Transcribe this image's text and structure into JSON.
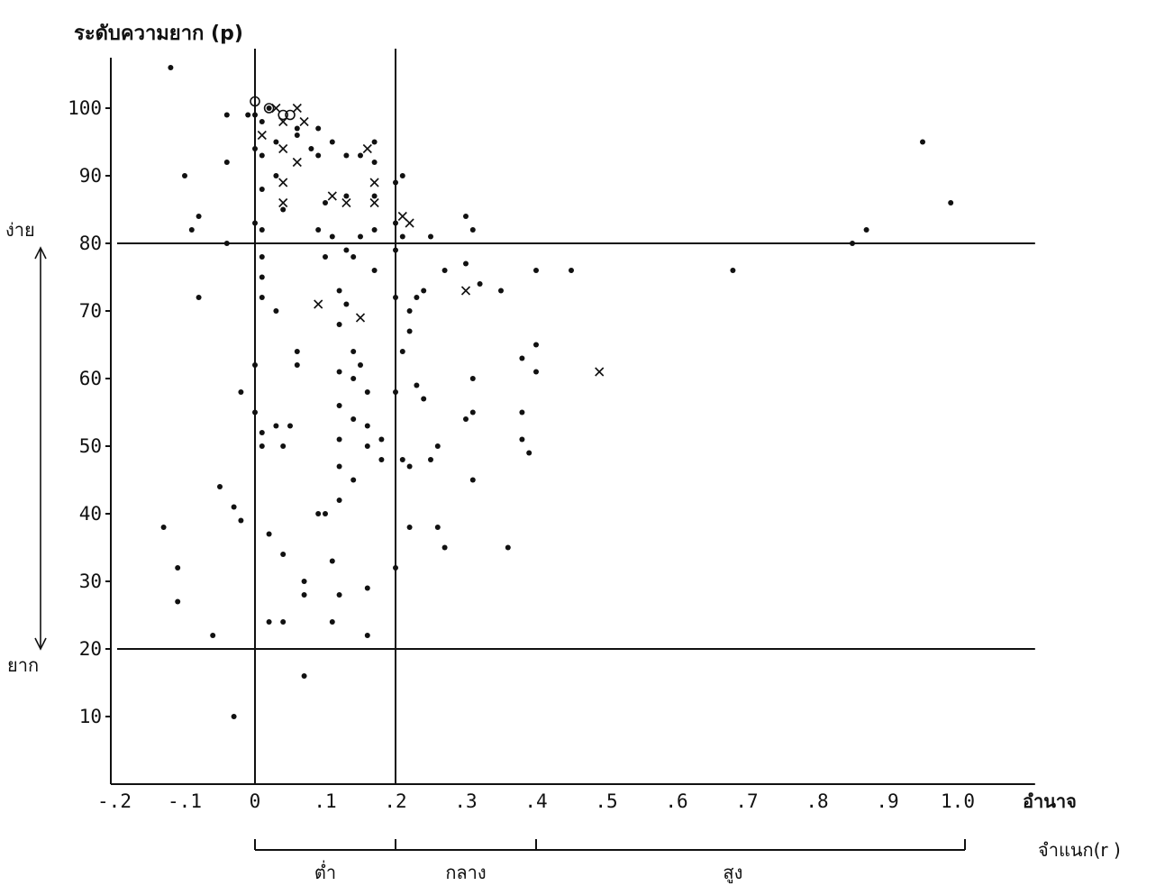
{
  "chart_data": {
    "type": "scatter",
    "ylabel": "ระดับความยาก (p)",
    "xlabel_line1": "อำนาจ",
    "xlabel_line2": "จำแนก(r )",
    "x_ticks": [
      {
        "v": -0.2,
        "label": "-.2"
      },
      {
        "v": -0.1,
        "label": "-.1"
      },
      {
        "v": 0.0,
        "label": "0"
      },
      {
        "v": 0.1,
        "label": ".1"
      },
      {
        "v": 0.2,
        "label": ".2"
      },
      {
        "v": 0.3,
        "label": ".3"
      },
      {
        "v": 0.4,
        "label": ".4"
      },
      {
        "v": 0.5,
        "label": ".5"
      },
      {
        "v": 0.6,
        "label": ".6"
      },
      {
        "v": 0.7,
        "label": ".7"
      },
      {
        "v": 0.8,
        "label": ".8"
      },
      {
        "v": 0.9,
        "label": ".9"
      },
      {
        "v": 1.0,
        "label": "1.0"
      }
    ],
    "y_ticks": [
      {
        "v": 10,
        "label": "10"
      },
      {
        "v": 20,
        "label": "20"
      },
      {
        "v": 30,
        "label": "30"
      },
      {
        "v": 40,
        "label": "40"
      },
      {
        "v": 50,
        "label": "50"
      },
      {
        "v": 60,
        "label": "60"
      },
      {
        "v": 70,
        "label": "70"
      },
      {
        "v": 80,
        "label": "80"
      },
      {
        "v": 90,
        "label": "90"
      },
      {
        "v": 100,
        "label": "100"
      }
    ],
    "xlim": [
      -0.2,
      1.11
    ],
    "ylim": [
      0,
      108
    ],
    "reference_lines": {
      "x": [
        0,
        0.2
      ],
      "y": [
        80,
        20
      ]
    },
    "y_annotations": {
      "easy": "ง่าย",
      "hard": "ยาก"
    },
    "discrimination_groups": [
      {
        "label": "ต่ำ",
        "from": 0.0,
        "to": 0.2
      },
      {
        "label": "กลาง",
        "from": 0.2,
        "to": 0.4
      },
      {
        "label": "สูง",
        "from": 0.4,
        "to": 1.0
      }
    ],
    "series": [
      {
        "marker": "dot",
        "points": [
          [
            -0.13,
            38
          ],
          [
            -0.12,
            106
          ],
          [
            -0.1,
            90
          ],
          [
            -0.08,
            72
          ],
          [
            -0.11,
            32
          ],
          [
            -0.11,
            27
          ],
          [
            -0.09,
            82
          ],
          [
            -0.08,
            84
          ],
          [
            -0.06,
            22
          ],
          [
            -0.05,
            44
          ],
          [
            -0.04,
            99
          ],
          [
            -0.04,
            92
          ],
          [
            -0.04,
            80
          ],
          [
            -0.03,
            41
          ],
          [
            -0.03,
            10
          ],
          [
            -0.02,
            58
          ],
          [
            -0.02,
            39
          ],
          [
            -0.01,
            99
          ],
          [
            0.0,
            99
          ],
          [
            0.0,
            94
          ],
          [
            0.0,
            83
          ],
          [
            0.0,
            62
          ],
          [
            0.0,
            55
          ],
          [
            0.01,
            98
          ],
          [
            0.01,
            93
          ],
          [
            0.01,
            88
          ],
          [
            0.01,
            82
          ],
          [
            0.01,
            78
          ],
          [
            0.01,
            75
          ],
          [
            0.01,
            72
          ],
          [
            0.01,
            52
          ],
          [
            0.01,
            50
          ],
          [
            0.02,
            37
          ],
          [
            0.02,
            24
          ],
          [
            0.02,
            100
          ],
          [
            0.03,
            95
          ],
          [
            0.03,
            90
          ],
          [
            0.03,
            70
          ],
          [
            0.03,
            53
          ],
          [
            0.04,
            34
          ],
          [
            0.04,
            24
          ],
          [
            0.04,
            85
          ],
          [
            0.04,
            50
          ],
          [
            0.05,
            53
          ],
          [
            0.06,
            97
          ],
          [
            0.06,
            96
          ],
          [
            0.06,
            64
          ],
          [
            0.06,
            62
          ],
          [
            0.07,
            30
          ],
          [
            0.07,
            28
          ],
          [
            0.07,
            16
          ],
          [
            0.08,
            94
          ],
          [
            0.09,
            97
          ],
          [
            0.09,
            93
          ],
          [
            0.09,
            82
          ],
          [
            0.09,
            40
          ],
          [
            0.1,
            86
          ],
          [
            0.1,
            78
          ],
          [
            0.1,
            40
          ],
          [
            0.11,
            33
          ],
          [
            0.11,
            24
          ],
          [
            0.11,
            81
          ],
          [
            0.11,
            95
          ],
          [
            0.12,
            73
          ],
          [
            0.12,
            68
          ],
          [
            0.12,
            61
          ],
          [
            0.12,
            56
          ],
          [
            0.12,
            51
          ],
          [
            0.12,
            47
          ],
          [
            0.12,
            42
          ],
          [
            0.12,
            28
          ],
          [
            0.13,
            93
          ],
          [
            0.13,
            87
          ],
          [
            0.13,
            79
          ],
          [
            0.13,
            71
          ],
          [
            0.14,
            64
          ],
          [
            0.14,
            60
          ],
          [
            0.14,
            54
          ],
          [
            0.14,
            45
          ],
          [
            0.14,
            78
          ],
          [
            0.15,
            93
          ],
          [
            0.15,
            81
          ],
          [
            0.15,
            62
          ],
          [
            0.16,
            58
          ],
          [
            0.16,
            53
          ],
          [
            0.16,
            50
          ],
          [
            0.16,
            29
          ],
          [
            0.16,
            22
          ],
          [
            0.17,
            95
          ],
          [
            0.17,
            87
          ],
          [
            0.17,
            82
          ],
          [
            0.17,
            92
          ],
          [
            0.17,
            76
          ],
          [
            0.18,
            51
          ],
          [
            0.18,
            48
          ],
          [
            0.2,
            89
          ],
          [
            0.2,
            83
          ],
          [
            0.2,
            79
          ],
          [
            0.2,
            72
          ],
          [
            0.2,
            58
          ],
          [
            0.2,
            32
          ],
          [
            0.21,
            90
          ],
          [
            0.21,
            81
          ],
          [
            0.21,
            64
          ],
          [
            0.21,
            48
          ],
          [
            0.22,
            47
          ],
          [
            0.22,
            70
          ],
          [
            0.22,
            67
          ],
          [
            0.22,
            38
          ],
          [
            0.23,
            59
          ],
          [
            0.23,
            72
          ],
          [
            0.24,
            73
          ],
          [
            0.24,
            57
          ],
          [
            0.25,
            48
          ],
          [
            0.25,
            81
          ],
          [
            0.26,
            50
          ],
          [
            0.26,
            38
          ],
          [
            0.27,
            76
          ],
          [
            0.27,
            35
          ],
          [
            0.3,
            84
          ],
          [
            0.3,
            77
          ],
          [
            0.3,
            54
          ],
          [
            0.31,
            82
          ],
          [
            0.31,
            60
          ],
          [
            0.31,
            55
          ],
          [
            0.31,
            45
          ],
          [
            0.32,
            74
          ],
          [
            0.35,
            73
          ],
          [
            0.36,
            35
          ],
          [
            0.38,
            63
          ],
          [
            0.38,
            55
          ],
          [
            0.38,
            51
          ],
          [
            0.39,
            49
          ],
          [
            0.4,
            76
          ],
          [
            0.4,
            65
          ],
          [
            0.4,
            61
          ],
          [
            0.45,
            76
          ],
          [
            0.68,
            76
          ],
          [
            0.85,
            80
          ],
          [
            0.95,
            95
          ],
          [
            0.87,
            82
          ],
          [
            0.99,
            86
          ]
        ]
      },
      {
        "marker": "cross",
        "points": [
          [
            0.01,
            96
          ],
          [
            0.03,
            100
          ],
          [
            0.04,
            98
          ],
          [
            0.04,
            94
          ],
          [
            0.04,
            89
          ],
          [
            0.04,
            86
          ],
          [
            0.06,
            92
          ],
          [
            0.06,
            100
          ],
          [
            0.07,
            98
          ],
          [
            0.09,
            71
          ],
          [
            0.11,
            87
          ],
          [
            0.13,
            86
          ],
          [
            0.15,
            69
          ],
          [
            0.16,
            94
          ],
          [
            0.17,
            89
          ],
          [
            0.17,
            86
          ],
          [
            0.21,
            84
          ],
          [
            0.22,
            83
          ],
          [
            0.3,
            73
          ],
          [
            0.49,
            61
          ]
        ]
      },
      {
        "marker": "circle",
        "points": [
          [
            0.0,
            101
          ],
          [
            0.02,
            100
          ],
          [
            0.04,
            99
          ],
          [
            0.05,
            99
          ]
        ]
      }
    ]
  }
}
